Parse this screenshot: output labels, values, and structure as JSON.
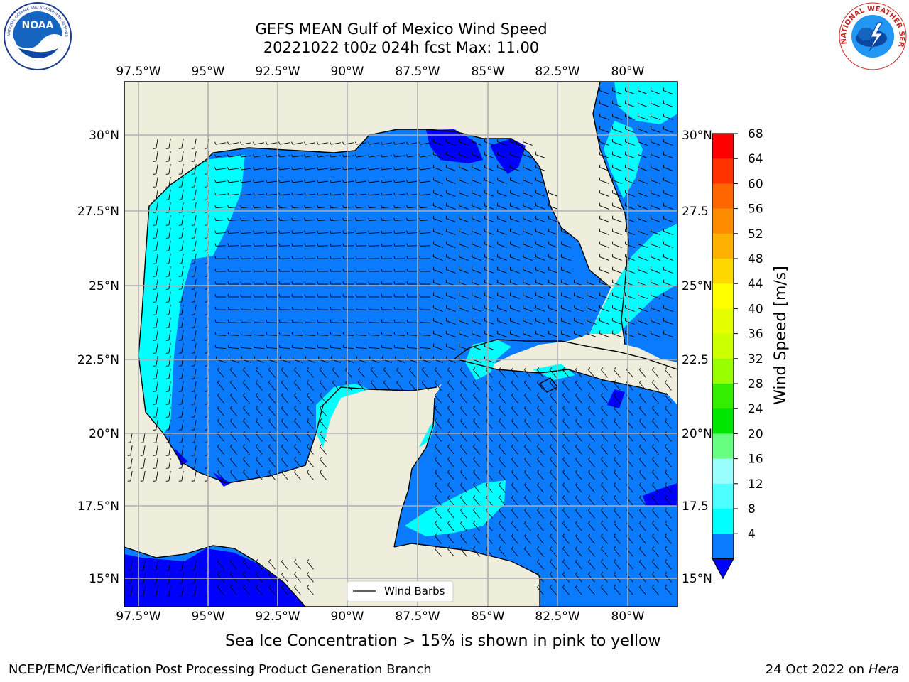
{
  "title": {
    "line1": "GEFS MEAN Gulf of Mexico Wind Speed",
    "line2": "20221022 t00z 024h fcst   Max: 11.00"
  },
  "logos": {
    "noaa_text": "NOAA",
    "noaa_ring": "NATIONAL OCEANIC AND ATMOSPHERIC ADMINISTRATION · U.S. DEPARTMENT OF COMMERCE",
    "nws_ring": "NATIONAL WEATHER SERVICE"
  },
  "map": {
    "lon_labels": [
      "97.5°W",
      "95°W",
      "92.5°W",
      "90°W",
      "87.5°W",
      "85°W",
      "82.5°W",
      "80°W"
    ],
    "lat_labels": [
      "30°N",
      "27.5°N",
      "25°N",
      "22.5°N",
      "20°N",
      "17.5°N",
      "15°N"
    ],
    "right_lat_labels": [
      "30°N",
      "27.5",
      "25°N",
      "22.5",
      "20°N",
      "17.5",
      "15°N"
    ],
    "legend_label": "Wind Barbs",
    "land_color": "#efeddc",
    "ocean_fill_color": "#0a7aff",
    "light_fill_color": "#00ffff"
  },
  "colorbar": {
    "label": "Wind Speed [m/s]",
    "ticks": [
      "68",
      "64",
      "60",
      "56",
      "52",
      "48",
      "44",
      "40",
      "36",
      "32",
      "28",
      "24",
      "20",
      "16",
      "12",
      "8",
      "4"
    ],
    "colors": [
      "#ff0000",
      "#ff3300",
      "#ff6600",
      "#ff8c00",
      "#ffb000",
      "#ffd700",
      "#ffff00",
      "#e5ff00",
      "#ccff00",
      "#99ff00",
      "#33ee00",
      "#00e600",
      "#66ff80",
      "#99ffff",
      "#4dffff",
      "#00ffff",
      "#0a7aff"
    ],
    "extend_color": "#0000ff"
  },
  "caption": "Sea Ice Concentration > 15% is shown in pink to yellow",
  "footer": {
    "left": "NCEP/EMC/Verification Post Processing Product Generation Branch",
    "right_date": "24 Oct 2022 on ",
    "right_host": "Hera"
  }
}
